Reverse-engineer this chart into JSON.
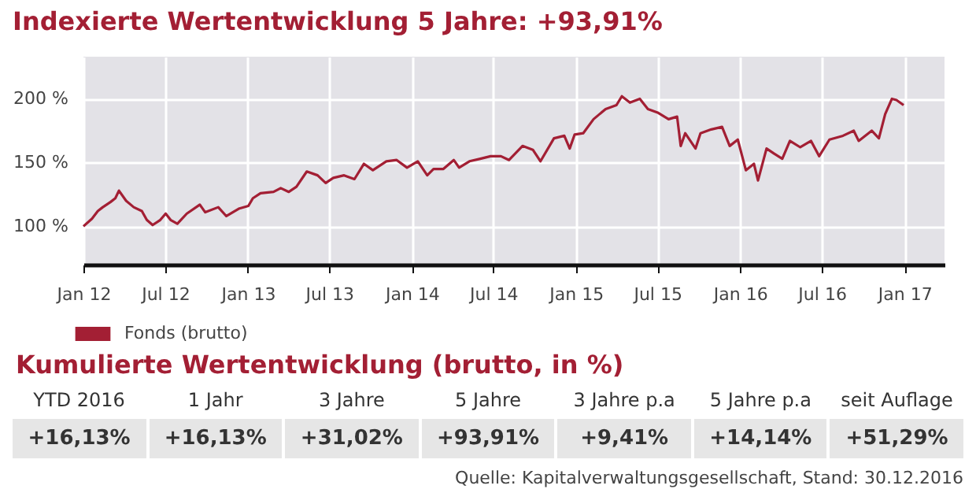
{
  "chart_data": [
    {
      "type": "line",
      "title": "Indexierte Wertentwicklung 5 Jahre: +93,91%",
      "x": [
        "2012-01-01",
        "2012-01-20",
        "2012-02-02",
        "2012-02-13",
        "2012-03-01",
        "2012-03-12",
        "2012-03-20",
        "2012-04-05",
        "2012-04-22",
        "2012-05-10",
        "2012-05-21",
        "2012-06-03",
        "2012-06-20",
        "2012-07-02",
        "2012-07-13",
        "2012-07-28",
        "2012-08-18",
        "2012-09-16",
        "2012-09-28",
        "2012-10-27",
        "2012-11-14",
        "2012-12-13",
        "2013-01-02",
        "2013-01-12",
        "2013-01-29",
        "2013-02-27",
        "2013-03-15",
        "2013-04-02",
        "2013-04-19",
        "2013-05-12",
        "2013-06-05",
        "2013-06-23",
        "2013-07-10",
        "2013-08-03",
        "2013-08-26",
        "2013-09-16",
        "2013-10-06",
        "2013-11-05",
        "2013-11-28",
        "2013-12-21",
        "2014-01-14",
        "2014-02-04",
        "2014-02-18",
        "2014-03-12",
        "2014-04-04",
        "2014-04-16",
        "2014-05-09",
        "2014-06-02",
        "2014-06-25",
        "2014-07-18",
        "2014-08-05",
        "2014-09-04",
        "2014-09-27",
        "2014-10-14",
        "2014-11-13",
        "2014-12-06",
        "2014-12-18",
        "2014-12-29",
        "2015-01-17",
        "2015-02-09",
        "2015-03-08",
        "2015-04-01",
        "2015-04-13",
        "2015-05-01",
        "2015-05-23",
        "2015-06-10",
        "2015-07-03",
        "2015-07-26",
        "2015-08-14",
        "2015-08-22",
        "2015-09-01",
        "2015-09-24",
        "2015-10-05",
        "2015-10-29",
        "2015-11-22",
        "2015-12-09",
        "2015-12-27",
        "2016-01-14",
        "2016-02-01",
        "2016-02-10",
        "2016-02-29",
        "2016-03-17",
        "2016-04-04",
        "2016-04-21",
        "2016-05-14",
        "2016-06-07",
        "2016-06-25",
        "2016-07-18",
        "2016-08-17",
        "2016-09-10",
        "2016-09-21",
        "2016-10-20",
        "2016-11-05",
        "2016-11-19",
        "2016-12-04",
        "2016-12-14",
        "2016-12-30"
      ],
      "series": [
        {
          "name": "Fonds (brutto)",
          "color": "#a31f34",
          "values": [
            100,
            106,
            112,
            115,
            119,
            122,
            128,
            120,
            115,
            112,
            105,
            101,
            105,
            110,
            105,
            102,
            110,
            117,
            111,
            115,
            108,
            114,
            116,
            122,
            126,
            127,
            130,
            127,
            131,
            143,
            140,
            134,
            138,
            140,
            137,
            149,
            144,
            151,
            152,
            146,
            151,
            140,
            145,
            145,
            152,
            146,
            151,
            153,
            155,
            155,
            152,
            163,
            160,
            151,
            169,
            171,
            161,
            172,
            173,
            184,
            192,
            195,
            202,
            197,
            200,
            192,
            189,
            184,
            186,
            163,
            173,
            161,
            173,
            176,
            178,
            163,
            168,
            144,
            149,
            136,
            161,
            157,
            153,
            167,
            162,
            167,
            155,
            168,
            171,
            175,
            167,
            175,
            169,
            188,
            200,
            199,
            195
          ]
        }
      ],
      "xlim": [
        "2012-01-01",
        "2017-03-31"
      ],
      "xticks": [
        {
          "value": "2012-01-01",
          "label": "Jan 12"
        },
        {
          "value": "2012-07-01",
          "label": "Jul 12"
        },
        {
          "value": "2013-01-01",
          "label": "Jan 13"
        },
        {
          "value": "2013-07-01",
          "label": "Jul 13"
        },
        {
          "value": "2014-01-01",
          "label": "Jan 14"
        },
        {
          "value": "2014-07-01",
          "label": "Jul 14"
        },
        {
          "value": "2015-01-01",
          "label": "Jan 15"
        },
        {
          "value": "2015-07-01",
          "label": "Jul 15"
        },
        {
          "value": "2016-01-01",
          "label": "Jan 16"
        },
        {
          "value": "2016-07-01",
          "label": "Jul 16"
        },
        {
          "value": "2017-01-01",
          "label": "Jan 17"
        }
      ],
      "ylim": [
        70,
        233
      ],
      "yticks": [
        {
          "value": 100,
          "label": "100 %"
        },
        {
          "value": 150,
          "label": "150 %"
        },
        {
          "value": 200,
          "label": "200 %"
        }
      ],
      "grid": true,
      "legend": "bottom left"
    },
    {
      "type": "other",
      "title": "Kumulierte Wertentwicklung (brutto, in %)",
      "categories": [
        "YTD 2016",
        "1 Jahr",
        "3 Jahre",
        "5 Jahre",
        "3 Jahre p.a",
        "5 Jahre p.a",
        "seit Auflage"
      ],
      "value_labels": [
        "+16,13%",
        "+16,13%",
        "+31,02%",
        "+93,91%",
        "+9,41%",
        "+14,14%",
        "+51,29%"
      ],
      "annotations": [
        "Quelle: Kapitalverwaltungsgesellschaft, Stand: 30.12.2016"
      ]
    }
  ]
}
